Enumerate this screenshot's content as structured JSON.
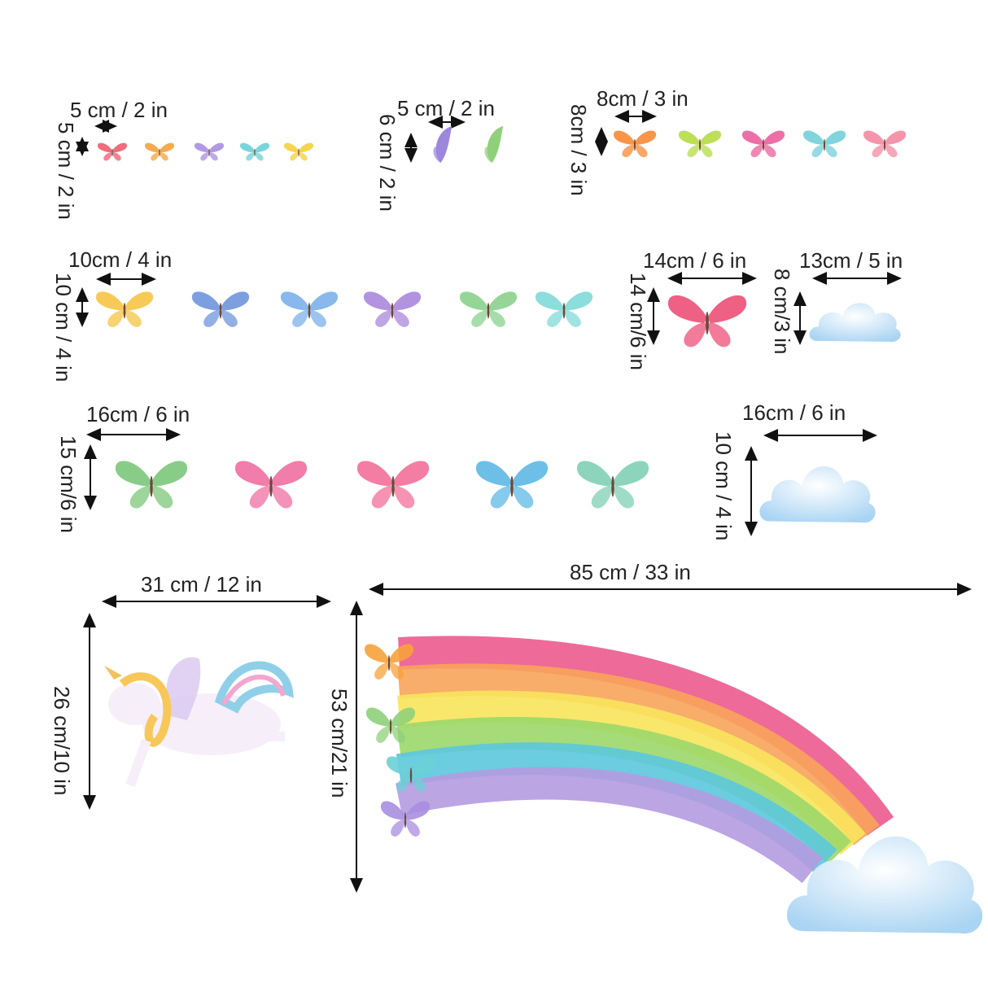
{
  "colors": {
    "text": "#222222",
    "arrow": "#111111",
    "rainbow_bands": [
      "#ec5a8e",
      "#f7a45a",
      "#f8e45c",
      "#9bd86a",
      "#5cc6dd",
      "#b59be0"
    ],
    "cloud": "#bfe0f7"
  },
  "groups": [
    {
      "id": "g1",
      "width_label": "5 cm / 2 in",
      "height_label": "5 cm / 2 in",
      "item": "butterfly",
      "count": 5,
      "item_colors": [
        "#ef5b6e",
        "#f5a23a",
        "#a98ee0",
        "#6cd0d6",
        "#f4d03a"
      ]
    },
    {
      "id": "g2",
      "width_label": "5 cm / 2 in",
      "height_label": "6 cm / 2 in",
      "item": "butterfly-side",
      "count": 2,
      "item_colors": [
        "#9c87dd",
        "#8fd07a"
      ]
    },
    {
      "id": "g3",
      "width_label": "8cm / 3 in",
      "height_label": "8cm / 3 in",
      "item": "butterfly",
      "count": 5,
      "item_colors": [
        "#f78a35",
        "#b6dc45",
        "#ec5f9c",
        "#73cfd8",
        "#f38aa2"
      ]
    },
    {
      "id": "g4",
      "width_label": "10cm / 4 in",
      "height_label": "10 cm / 4 in",
      "item": "butterfly",
      "count": 6,
      "item_colors": [
        "#f6c445",
        "#6f95db",
        "#7bb0ea",
        "#a987db",
        "#8ad28d",
        "#7fd9d8"
      ]
    },
    {
      "id": "g5",
      "width_label": "14cm / 6 in",
      "height_label": "14 cm/6 in",
      "item": "butterfly",
      "count": 1,
      "item_colors": [
        "#ec4f77"
      ]
    },
    {
      "id": "g6",
      "width_label": "13cm / 5 in",
      "height_label": "8 cm/3 in",
      "item": "cloud",
      "count": 1
    },
    {
      "id": "g7",
      "width_label": "16cm / 6 in",
      "height_label": "15 cm/6 in",
      "item": "butterfly",
      "count": 5,
      "item_colors": [
        "#7cc77a",
        "#ef6fa2",
        "#f36f9a",
        "#5db8e6",
        "#7fd0b5"
      ]
    },
    {
      "id": "g8",
      "width_label": "16cm / 6 in",
      "height_label": "10 cm / 4 in",
      "item": "cloud",
      "count": 1
    },
    {
      "id": "g9",
      "width_label": "31 cm / 12 in",
      "height_label": "26 cm/10 in",
      "item": "unicorn",
      "count": 1
    },
    {
      "id": "g10",
      "width_label": "85 cm / 33 in",
      "height_label": "53 cm/21 in",
      "item": "rainbow",
      "count": 1
    }
  ]
}
